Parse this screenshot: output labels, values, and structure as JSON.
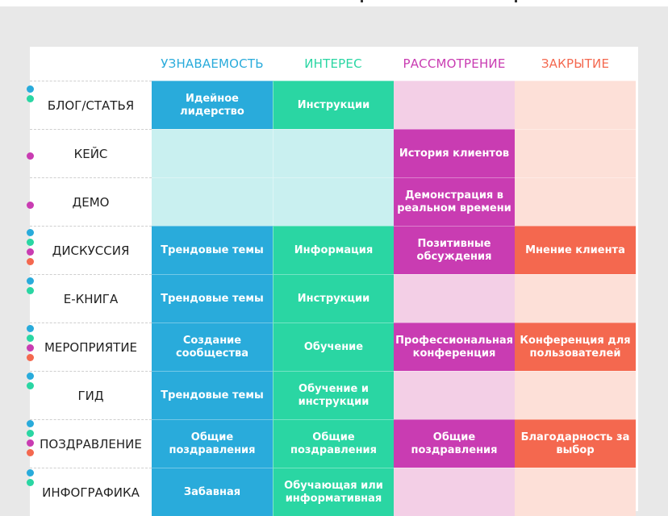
{
  "colors": {
    "awareness": "#29abdb",
    "interest": "#2ad6a3",
    "consideration": "#c93cb2",
    "closing": "#f4684f"
  },
  "headers": [
    "",
    "УЗНАВАЕМОСТЬ",
    "ИНТЕРЕС",
    "РАССМОТРЕНИЕ",
    "ЗАКРЫТИЕ"
  ],
  "rows": [
    {
      "label": "БЛОГ/СТАТЬЯ",
      "cells": [
        "Идейное лидерство",
        "Инструкции",
        "",
        ""
      ]
    },
    {
      "label": "КЕЙС",
      "cells": [
        "",
        "",
        "История клиентов",
        ""
      ]
    },
    {
      "label": "ДЕМО",
      "cells": [
        "",
        "",
        "Демонстрация в реальном времени",
        ""
      ]
    },
    {
      "label": "ДИСКУССИЯ",
      "cells": [
        "Трендовые темы",
        "Информация",
        "Позитивные обсуждения",
        "Мнение клиента"
      ]
    },
    {
      "label": "Е-КНИГА",
      "cells": [
        "Трендовые темы",
        "Инструкции",
        "",
        ""
      ]
    },
    {
      "label": "МЕРОПРИЯТИЕ",
      "cells": [
        "Создание сообщества",
        "Обучение",
        "Профессиональная конференция",
        "Конференция для пользователей"
      ]
    },
    {
      "label": "ГИД",
      "cells": [
        "Трендовые темы",
        "Обучение и инструкции",
        "",
        ""
      ]
    },
    {
      "label": "ПОЗДРАВЛЕНИЕ",
      "cells": [
        "Общие поздравления",
        "Общие поздравления",
        "Общие поздравления",
        "Благодарность за выбор"
      ]
    },
    {
      "label": "ИНФОГРАФИКА",
      "cells": [
        "Забавная",
        "Обучающая или информативная",
        "",
        ""
      ]
    }
  ]
}
